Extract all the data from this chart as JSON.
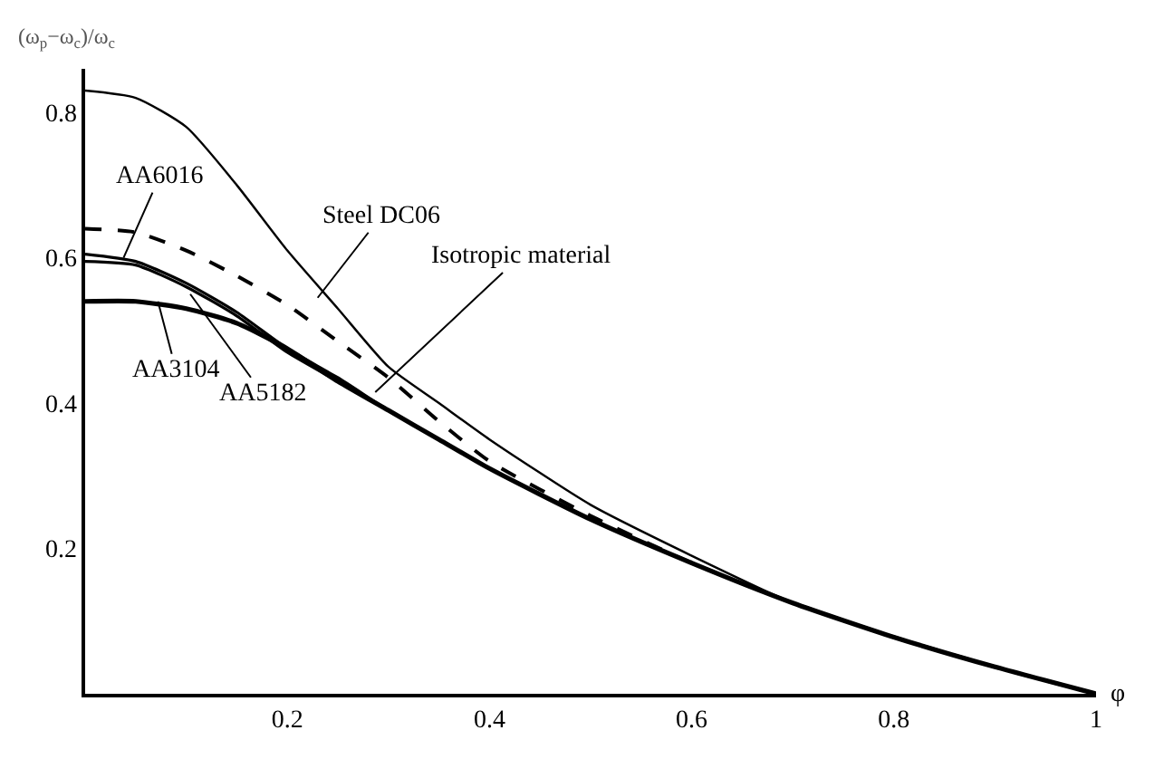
{
  "chart_data": {
    "type": "line",
    "xlabel": "φ",
    "ylabel": "(ω$_{p}$−ω$_{c}$)/ω$_{c}$",
    "x": [
      0,
      0.05,
      0.1,
      0.15,
      0.2,
      0.25,
      0.3,
      0.35,
      0.4,
      0.5,
      0.6,
      0.7,
      0.8,
      0.9,
      1.0
    ],
    "series": [
      {
        "color": "#000000",
        "values": [
          0.83,
          0.82,
          0.78,
          0.7,
          0.61,
          0.53,
          0.45,
          0.4,
          0.35,
          0.26,
          0.19,
          0.125,
          0.078,
          0.037,
          0
        ]
      },
      {
        "color": "#000000",
        "line_style": "dashed",
        "values": [
          0.64,
          0.635,
          0.61,
          0.575,
          0.535,
          0.485,
          0.435,
          0.375,
          0.32,
          0.245,
          0.18,
          0.125,
          0.078,
          0.037,
          0
        ]
      },
      {
        "color": "#000000",
        "values": [
          0.605,
          0.595,
          0.565,
          0.525,
          0.475,
          0.435,
          0.39,
          0.35,
          0.31,
          0.24,
          0.18,
          0.125,
          0.078,
          0.037,
          0
        ]
      },
      {
        "color": "#000000",
        "values": [
          0.595,
          0.59,
          0.56,
          0.52,
          0.47,
          0.43,
          0.39,
          0.35,
          0.31,
          0.24,
          0.18,
          0.125,
          0.078,
          0.037,
          0
        ]
      },
      {
        "color": "#000000",
        "values": [
          0.54,
          0.54,
          0.53,
          0.51,
          0.475,
          0.43,
          0.39,
          0.35,
          0.31,
          0.24,
          0.18,
          0.125,
          0.078,
          0.037,
          0
        ]
      }
    ],
    "xlim": [
      0,
      1
    ],
    "xticks": [
      0.2,
      0.4,
      0.6,
      0.8,
      1
    ],
    "ylim": [
      0,
      0.86
    ],
    "yticks": [
      0.2,
      0.4,
      0.6,
      0.8
    ],
    "marker": "none",
    "line_style": "solid",
    "annotations": [
      {
        "text": "Steel DC06",
        "x": 0.23,
        "y": 0.545
      },
      {
        "text": "Isotropic material",
        "x": 0.287,
        "y": 0.415
      },
      {
        "text": "AA6016",
        "x": 0.038,
        "y": 0.6
      },
      {
        "text": "AA3104",
        "x": 0.072,
        "y": 0.54
      },
      {
        "text": "AA5182",
        "x": 0.104,
        "y": 0.55
      }
    ]
  }
}
